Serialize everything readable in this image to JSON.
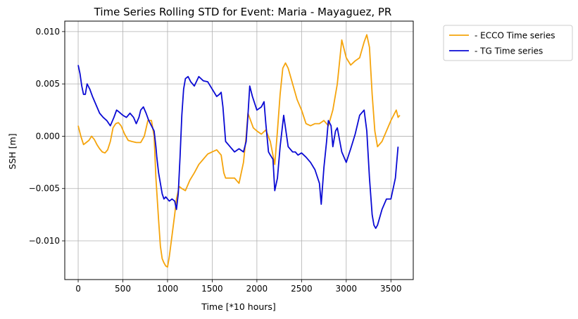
{
  "chart_data": {
    "type": "line",
    "title": "Time Series Rolling STD for Event: Maria - Mayaguez, PR",
    "xlabel": "Time [*10 hours]",
    "ylabel": "SSH [m]",
    "xlim": [
      -150,
      3750
    ],
    "ylim": [
      -0.0137,
      0.011
    ],
    "x_ticks": [
      0,
      500,
      1000,
      1500,
      2000,
      2500,
      3000,
      3500
    ],
    "y_ticks": [
      -0.01,
      -0.005,
      0.0,
      0.005,
      0.01
    ],
    "y_tick_labels": [
      "−0.010",
      "−0.005",
      "0.000",
      "0.005",
      "0.010"
    ],
    "grid": true,
    "legend_position": "outside-top-right",
    "series": [
      {
        "name": "- ECCO Time series",
        "color": "#f5a40c",
        "x": [
          0,
          30,
          60,
          90,
          120,
          150,
          180,
          210,
          240,
          270,
          300,
          330,
          360,
          390,
          420,
          450,
          480,
          520,
          560,
          600,
          650,
          700,
          740,
          780,
          820,
          850,
          870,
          900,
          920,
          940,
          960,
          980,
          1000,
          1020,
          1050,
          1080,
          1100,
          1130,
          1160,
          1200,
          1250,
          1300,
          1350,
          1400,
          1450,
          1500,
          1550,
          1600,
          1630,
          1650,
          1700,
          1750,
          1800,
          1850,
          1880,
          1900,
          1930,
          1960,
          2000,
          2050,
          2100,
          2150,
          2200,
          2230,
          2260,
          2290,
          2320,
          2350,
          2400,
          2450,
          2500,
          2550,
          2600,
          2650,
          2700,
          2750,
          2800,
          2850,
          2900,
          2950,
          3000,
          3050,
          3100,
          3150,
          3200,
          3230,
          3260,
          3290,
          3320,
          3350,
          3400,
          3450,
          3500,
          3560,
          3580,
          3600
        ],
        "y": [
          0.001,
          0.0,
          -0.0008,
          -0.0006,
          -0.0004,
          0.0,
          -0.0003,
          -0.0008,
          -0.0012,
          -0.0015,
          -0.0016,
          -0.0013,
          -0.0005,
          0.0008,
          0.0012,
          0.0013,
          0.001,
          0.0002,
          -0.0004,
          -0.0005,
          -0.0006,
          -0.0006,
          0.0,
          0.0015,
          0.0015,
          0.0,
          -0.004,
          -0.008,
          -0.0105,
          -0.0117,
          -0.0121,
          -0.0124,
          -0.0125,
          -0.0115,
          -0.0095,
          -0.0075,
          -0.006,
          -0.0048,
          -0.005,
          -0.0052,
          -0.0042,
          -0.0035,
          -0.0027,
          -0.0022,
          -0.0017,
          -0.0015,
          -0.0013,
          -0.0018,
          -0.0035,
          -0.004,
          -0.004,
          -0.004,
          -0.0045,
          -0.0025,
          0.0,
          0.0022,
          0.0015,
          0.0008,
          0.0005,
          0.0002,
          0.0006,
          -0.0005,
          -0.0027,
          0.0005,
          0.004,
          0.0065,
          0.007,
          0.0065,
          0.005,
          0.0035,
          0.0025,
          0.0012,
          0.001,
          0.0012,
          0.0012,
          0.0015,
          0.001,
          0.0025,
          0.005,
          0.0092,
          0.0075,
          0.0068,
          0.0072,
          0.0075,
          0.009,
          0.0097,
          0.0085,
          0.004,
          0.0005,
          -0.001,
          -0.0005,
          0.0005,
          0.0015,
          0.0025,
          0.0018,
          0.002
        ]
      },
      {
        "name": "- TG Time series",
        "color": "#0a0ad4",
        "x": [
          0,
          20,
          40,
          60,
          80,
          100,
          130,
          160,
          200,
          240,
          280,
          320,
          360,
          400,
          430,
          460,
          500,
          540,
          580,
          620,
          650,
          680,
          700,
          730,
          760,
          790,
          820,
          850,
          870,
          880,
          900,
          920,
          940,
          960,
          980,
          1000,
          1020,
          1050,
          1080,
          1100,
          1120,
          1140,
          1160,
          1180,
          1200,
          1230,
          1260,
          1300,
          1350,
          1400,
          1450,
          1500,
          1550,
          1580,
          1600,
          1620,
          1650,
          1700,
          1750,
          1800,
          1850,
          1880,
          1900,
          1920,
          1950,
          2000,
          2050,
          2080,
          2100,
          2130,
          2150,
          2180,
          2200,
          2230,
          2260,
          2300,
          2350,
          2380,
          2400,
          2430,
          2460,
          2500,
          2550,
          2600,
          2650,
          2700,
          2720,
          2750,
          2780,
          2800,
          2830,
          2850,
          2880,
          2900,
          2950,
          3000,
          3050,
          3100,
          3150,
          3200,
          3230,
          3260,
          3290,
          3310,
          3330,
          3350,
          3400,
          3450,
          3500,
          3550,
          3580
        ],
        "y": [
          0.0068,
          0.006,
          0.0048,
          0.004,
          0.004,
          0.005,
          0.0045,
          0.0038,
          0.003,
          0.0022,
          0.0018,
          0.0015,
          0.001,
          0.0018,
          0.0025,
          0.0023,
          0.002,
          0.0018,
          0.0022,
          0.0018,
          0.0012,
          0.0018,
          0.0025,
          0.0028,
          0.0022,
          0.0015,
          0.001,
          0.0005,
          -0.001,
          -0.002,
          -0.0035,
          -0.0045,
          -0.0055,
          -0.006,
          -0.0058,
          -0.006,
          -0.0062,
          -0.006,
          -0.0062,
          -0.007,
          -0.0055,
          -0.002,
          0.002,
          0.0045,
          0.0055,
          0.0057,
          0.0052,
          0.0048,
          0.0057,
          0.0053,
          0.0052,
          0.0045,
          0.0038,
          0.004,
          0.0042,
          0.0028,
          -0.0005,
          -0.001,
          -0.0015,
          -0.0012,
          -0.0015,
          -0.0005,
          0.002,
          0.0048,
          0.0038,
          0.0025,
          0.0028,
          0.0033,
          0.0012,
          -0.0015,
          -0.0018,
          -0.0022,
          -0.0052,
          -0.004,
          -0.001,
          0.002,
          -0.001,
          -0.0013,
          -0.0015,
          -0.0015,
          -0.0018,
          -0.0016,
          -0.002,
          -0.0025,
          -0.0032,
          -0.0045,
          -0.0065,
          -0.003,
          -0.0005,
          0.0015,
          0.001,
          -0.001,
          0.0005,
          0.0008,
          -0.0015,
          -0.0025,
          -0.0012,
          0.0002,
          0.002,
          0.0025,
          0.0005,
          -0.004,
          -0.0075,
          -0.0085,
          -0.0088,
          -0.0085,
          -0.007,
          -0.006,
          -0.006,
          -0.004,
          -0.001
        ]
      }
    ]
  }
}
